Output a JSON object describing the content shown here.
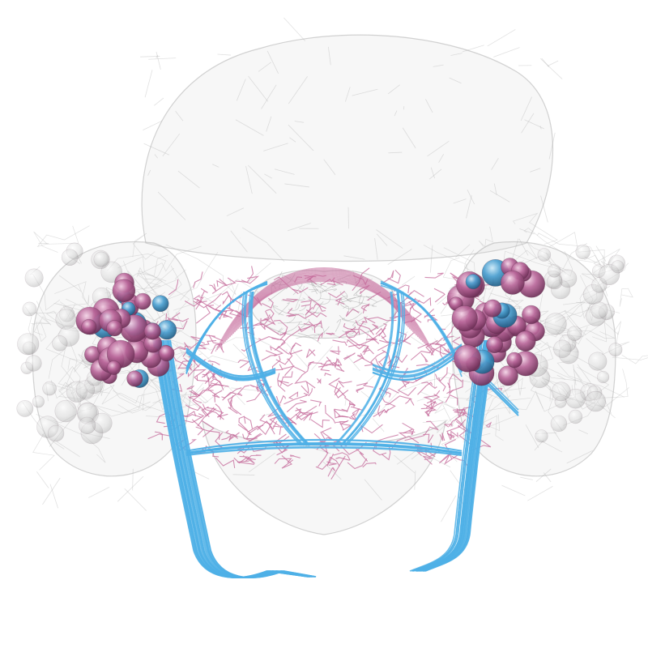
{
  "scene": {
    "background": "#ffffff",
    "colors": {
      "mesh_fill": "#d9d9d9",
      "mesh_edge": "#a8a8a8",
      "population_a": "#c46a9a",
      "population_a_soma": "#a3507f",
      "population_b": "#4fb0e6",
      "population_b_soma": "#3b8fc4",
      "background_neurons": "#bdbdbd"
    },
    "layers": [
      "brain-mesh",
      "background-neurons",
      "magenta-neurons",
      "cyan-neurons",
      "somata"
    ]
  }
}
